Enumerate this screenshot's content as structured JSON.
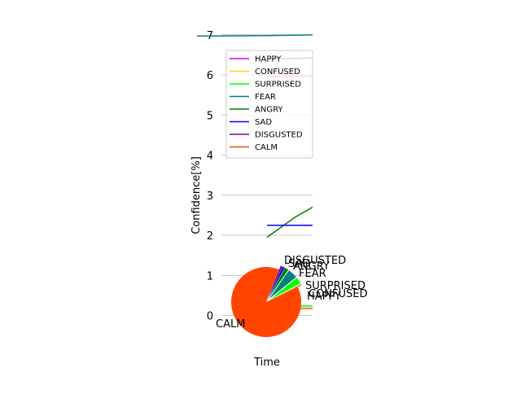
{
  "chart_data": {
    "type": "line",
    "title": "",
    "xlabel": "Time",
    "ylabel": "Confidence[%]",
    "ylim": [
      -0.7,
      7.3
    ],
    "yticks": [
      0,
      1,
      2,
      3,
      4,
      5,
      6,
      7
    ],
    "grid": "y",
    "legend_position": "upper-left",
    "series": [
      {
        "name": "HAPPY",
        "color": "#d500d5",
        "points": [
          [
            0.03,
            0.16
          ],
          [
            0.13,
            0.18
          ]
        ]
      },
      {
        "name": "CONFUSED",
        "color": "#ffd700",
        "points": [
          [
            0.04,
            0.15
          ],
          [
            0.13,
            0.16
          ]
        ]
      },
      {
        "name": "SURPRISED",
        "color": "#00ff00",
        "points": [
          [
            0.04,
            0.22
          ],
          [
            0.13,
            0.24
          ]
        ]
      },
      {
        "name": "FEAR",
        "color": "#008080",
        "points": [
          [
            -0.2,
            6.97
          ],
          [
            0.0,
            6.98
          ],
          [
            0.13,
            7.0
          ]
        ]
      },
      {
        "name": "ANGRY",
        "color": "#008000",
        "points": [
          [
            0.0,
            1.95
          ],
          [
            0.08,
            2.45
          ],
          [
            0.13,
            2.7
          ]
        ]
      },
      {
        "name": "SAD",
        "color": "#0000ff",
        "points": [
          [
            0.0,
            2.25
          ],
          [
            0.13,
            2.25
          ]
        ]
      },
      {
        "name": "DISGUSTED",
        "color": "#800080",
        "points": [
          [
            0.0,
            6.4
          ],
          [
            0.13,
            6.42
          ]
        ]
      },
      {
        "name": "CALM",
        "color": "#ff4500",
        "points": [
          [
            0.0,
            5.95
          ],
          [
            0.13,
            5.97
          ]
        ]
      }
    ],
    "pie": {
      "type": "pie",
      "slices": [
        {
          "label": "CALM",
          "value": 88.0,
          "color": "#ff4500"
        },
        {
          "label": "HAPPY",
          "value": 0.3,
          "color": "#d500d5"
        },
        {
          "label": "CONFUSED",
          "value": 0.5,
          "color": "#ffd700"
        },
        {
          "label": "SURPRISED",
          "value": 3.0,
          "color": "#00ff00"
        },
        {
          "label": "FEAR",
          "value": 4.5,
          "color": "#008080"
        },
        {
          "label": "ANGRY",
          "value": 1.8,
          "color": "#008000"
        },
        {
          "label": "SAD",
          "value": 1.0,
          "color": "#0000ff"
        },
        {
          "label": "DISGUSTED",
          "value": 0.9,
          "color": "#800080"
        }
      ]
    }
  }
}
